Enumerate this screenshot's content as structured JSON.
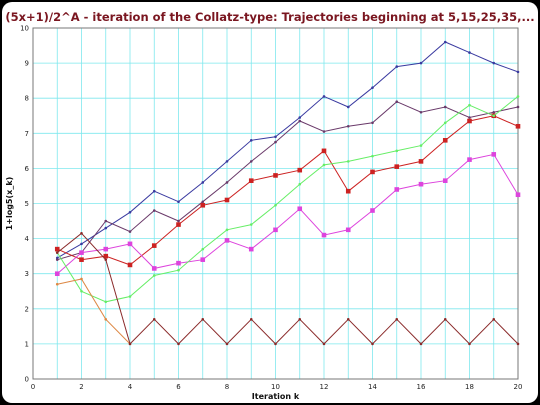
{
  "chart_data": {
    "type": "line",
    "title": "(5x+1)/2^A - iteration of the Collatz-type: Trajectories beginning at 5,15,25,35,...",
    "xlabel": "Iteration k",
    "ylabel": "1+log5(x_k)",
    "xlim": [
      0,
      20
    ],
    "ylim": [
      0,
      10
    ],
    "xticks": [
      0,
      2,
      4,
      6,
      8,
      10,
      12,
      14,
      16,
      18,
      20
    ],
    "yticks": [
      0,
      1,
      2,
      3,
      4,
      5,
      6,
      7,
      8,
      9,
      10
    ],
    "grid": true,
    "legend": "none",
    "colors": {
      "background": "#ffffff",
      "grid": "#7ee8ee",
      "title": "#7a1620",
      "axis": "#777777"
    },
    "series": [
      {
        "color": "#3a3aa0",
        "marker": "dot",
        "x": [
          1,
          2,
          3,
          4,
          5,
          6,
          7,
          8,
          9,
          10,
          11,
          12,
          13,
          14,
          15,
          16,
          17,
          18,
          19,
          20
        ],
        "y": [
          3.45,
          3.85,
          4.3,
          4.75,
          5.35,
          5.05,
          5.6,
          6.2,
          6.8,
          6.9,
          7.45,
          8.05,
          7.75,
          8.3,
          8.9,
          9.0,
          9.6,
          9.3,
          9.0,
          8.75
        ]
      },
      {
        "color": "#6a3a6a",
        "marker": "dot",
        "x": [
          1,
          2,
          3,
          4,
          5,
          6,
          7,
          8,
          9,
          10,
          11,
          12,
          13,
          14,
          15,
          16,
          17,
          18,
          19,
          20
        ],
        "y": [
          3.4,
          3.6,
          4.5,
          4.2,
          4.8,
          4.5,
          5.05,
          5.6,
          6.2,
          6.75,
          7.35,
          7.05,
          7.2,
          7.3,
          7.9,
          7.6,
          7.75,
          7.45,
          7.6,
          7.75
        ]
      },
      {
        "color": "#cc2222",
        "marker": "square",
        "x": [
          1,
          2,
          3,
          4,
          5,
          6,
          7,
          8,
          9,
          10,
          11,
          12,
          13,
          14,
          15,
          16,
          17,
          18,
          19,
          20
        ],
        "y": [
          3.7,
          3.4,
          3.5,
          3.25,
          3.8,
          4.4,
          4.95,
          5.1,
          5.65,
          5.8,
          5.95,
          6.5,
          5.35,
          5.9,
          6.05,
          6.2,
          6.8,
          7.35,
          7.5,
          7.2
        ]
      },
      {
        "color": "#dd44dd",
        "marker": "square",
        "x": [
          1,
          2,
          3,
          4,
          5,
          6,
          7,
          8,
          9,
          10,
          11,
          12,
          13,
          14,
          15,
          16,
          17,
          18,
          19,
          20
        ],
        "y": [
          3.0,
          3.6,
          3.7,
          3.85,
          3.15,
          3.3,
          3.4,
          3.95,
          3.7,
          4.25,
          4.85,
          4.1,
          4.25,
          4.8,
          5.4,
          5.55,
          5.65,
          6.25,
          6.4,
          5.25
        ]
      },
      {
        "color": "#66ee66",
        "marker": "dot",
        "x": [
          1,
          2,
          3,
          4,
          5,
          6,
          7,
          8,
          9,
          10,
          11,
          12,
          13,
          14,
          15,
          16,
          17,
          18,
          19,
          20
        ],
        "y": [
          3.6,
          2.5,
          2.2,
          2.35,
          2.95,
          3.1,
          3.7,
          4.25,
          4.4,
          4.95,
          5.55,
          6.1,
          6.2,
          6.35,
          6.5,
          6.65,
          7.3,
          7.8,
          7.5,
          8.05
        ]
      },
      {
        "color": "#dd8844",
        "marker": "dot",
        "x": [
          1,
          2,
          3,
          4
        ],
        "y": [
          2.7,
          2.85,
          1.7,
          1.0
        ]
      },
      {
        "color": "#8a2a2a",
        "marker": "dot",
        "x": [
          1,
          2,
          3,
          4,
          5,
          6,
          7,
          8,
          9,
          10,
          11,
          12,
          13,
          14,
          15,
          16,
          17,
          18,
          19,
          20
        ],
        "y": [
          3.6,
          4.15,
          3.4,
          1.0,
          1.7,
          1.0,
          1.7,
          1.0,
          1.7,
          1.0,
          1.7,
          1.0,
          1.7,
          1.0,
          1.7,
          1.0,
          1.7,
          1.0,
          1.7,
          1.0
        ]
      }
    ]
  }
}
